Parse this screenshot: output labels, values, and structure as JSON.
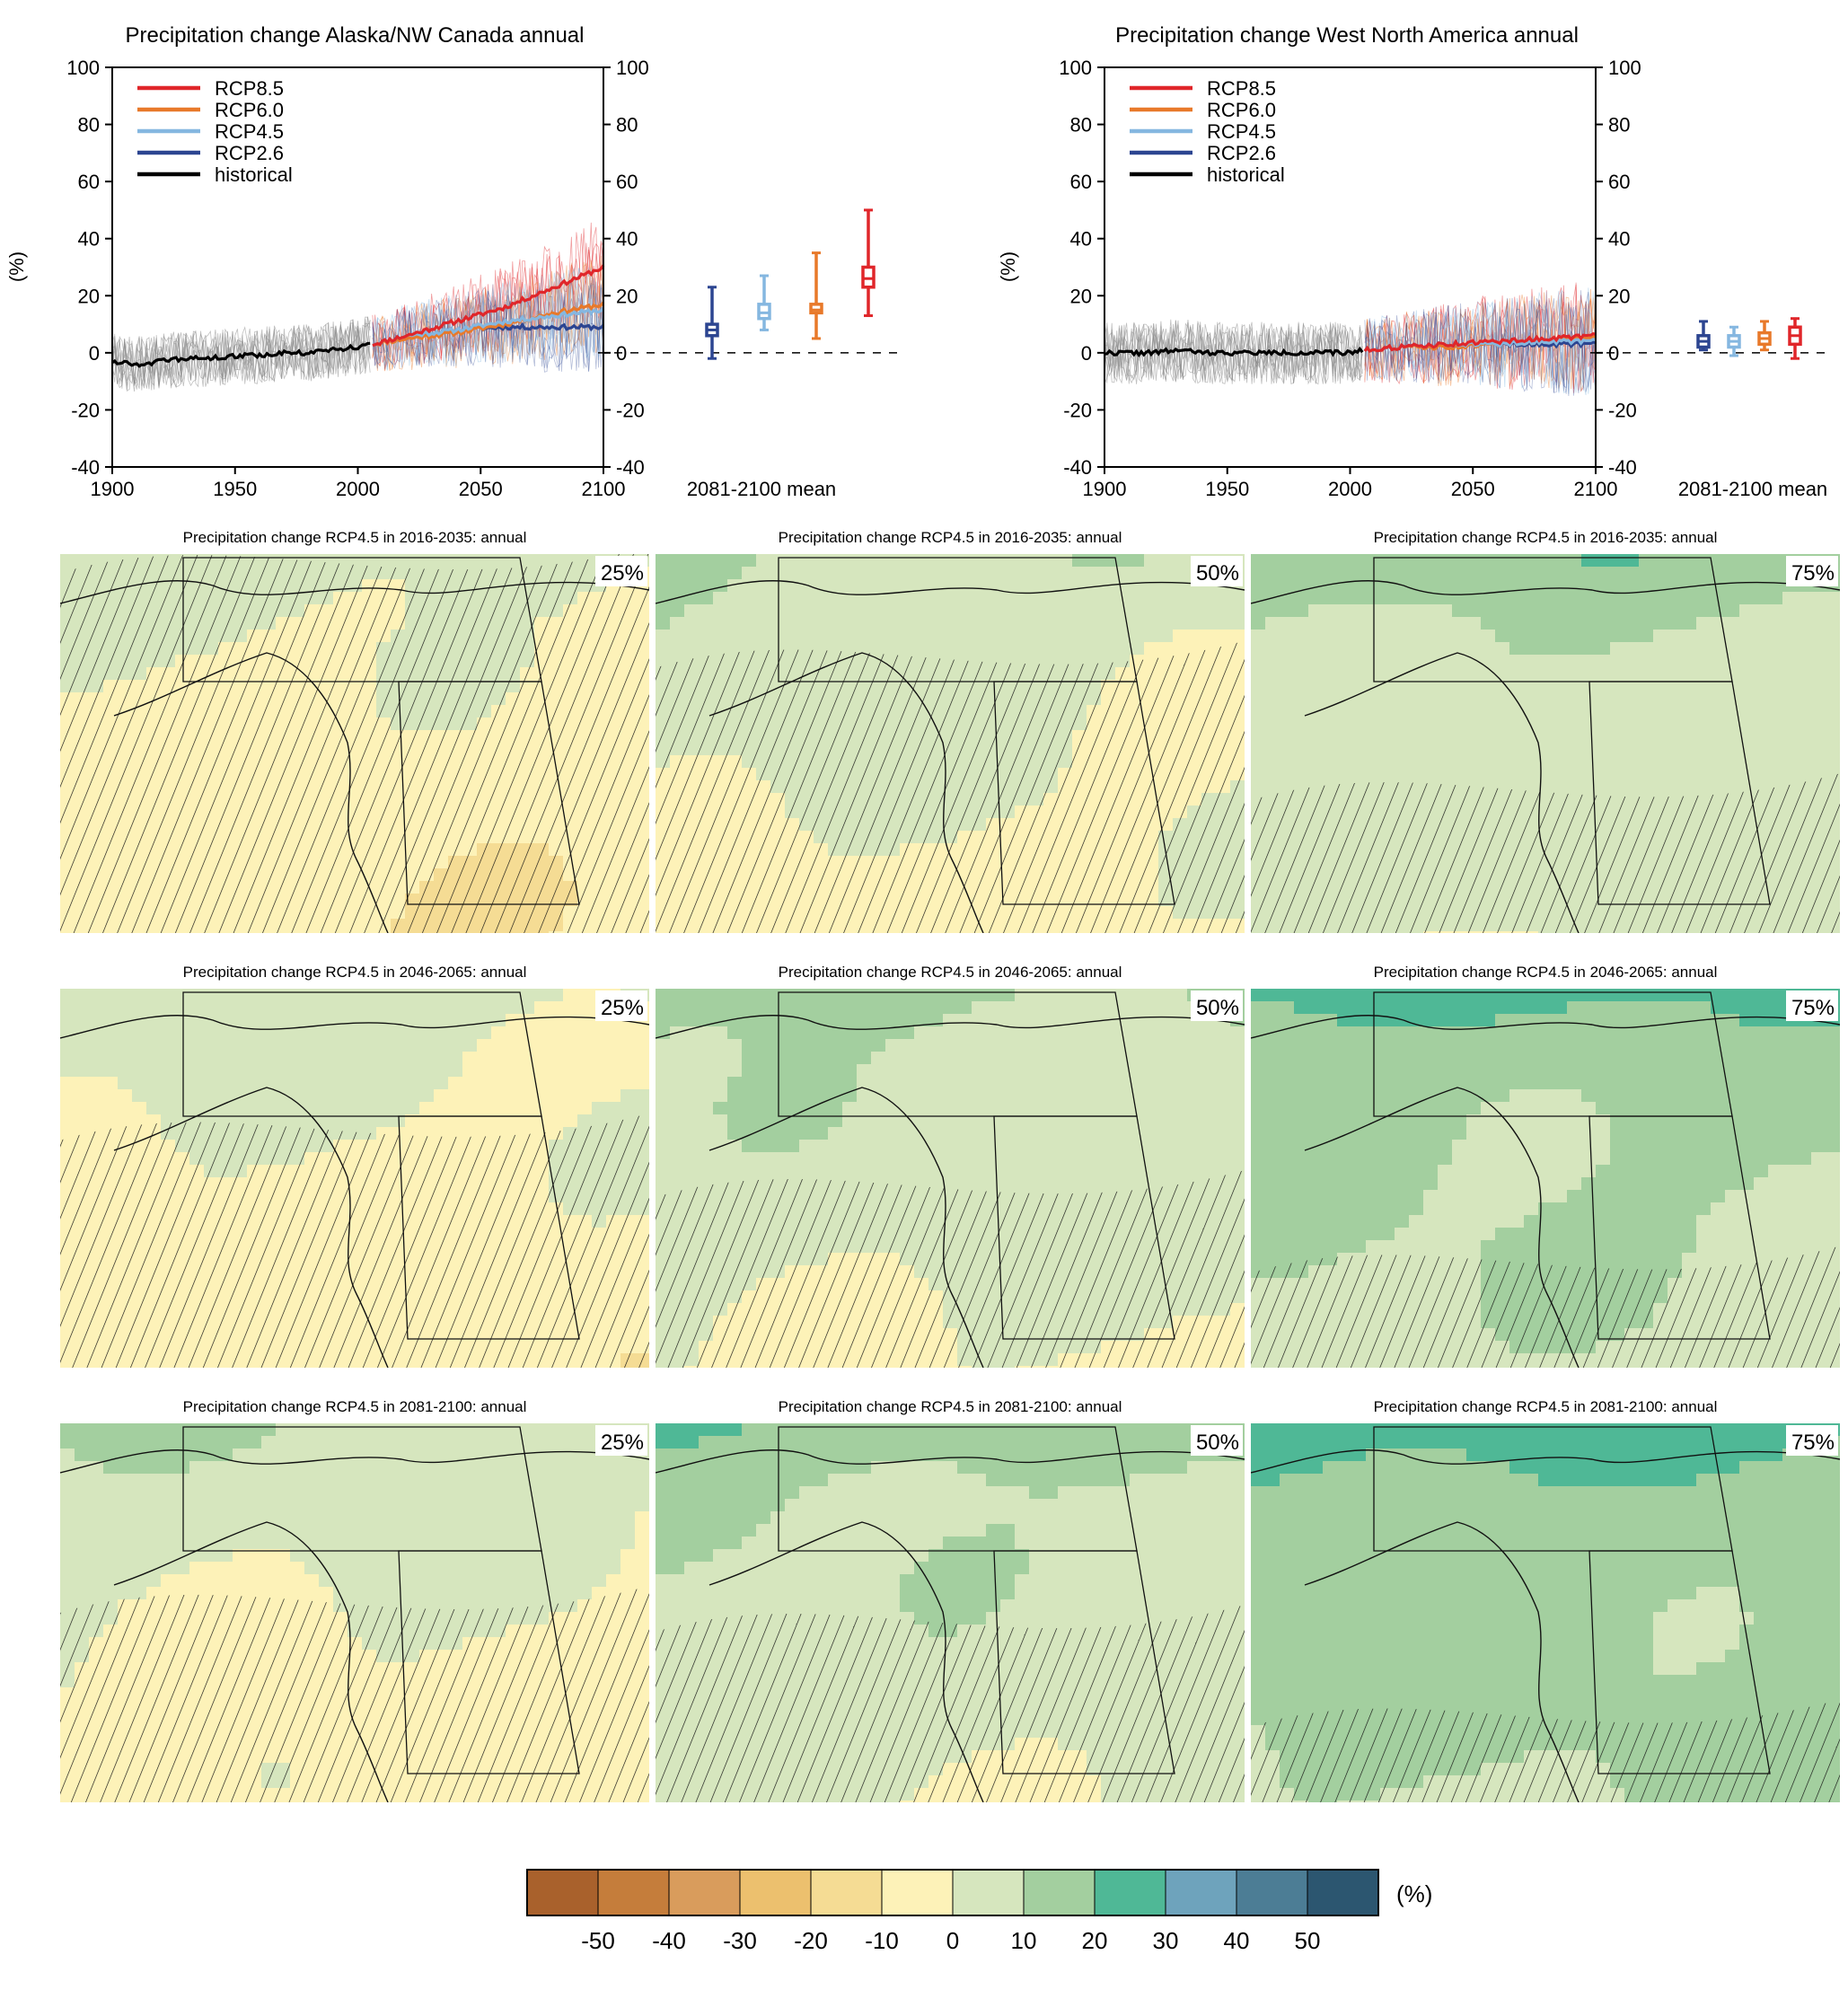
{
  "colors": {
    "rcp85": "#e0262a",
    "rcp60": "#e8792a",
    "rcp45": "#85b7e0",
    "rcp26": "#2c4591",
    "historical": "#000000",
    "spread_historical": "#8c8c8c"
  },
  "chart_data": [
    {
      "type": "line",
      "title": "Precipitation change Alaska/NW Canada annual",
      "xlabel": "",
      "ylabel": "(%)",
      "xlim": [
        1900,
        2100
      ],
      "ylim": [
        -40,
        100
      ],
      "xticks": [
        "1900",
        "1950",
        "2000",
        "2050",
        "2100"
      ],
      "yticks": [
        "-40",
        "-20",
        "0",
        "20",
        "40",
        "60",
        "80",
        "100"
      ],
      "legend": [
        "RCP8.5",
        "RCP6.0",
        "RCP4.5",
        "RCP2.6",
        "historical"
      ],
      "legend_position": "top-left",
      "series": [
        {
          "name": "historical",
          "x": [
            1900,
            1910,
            1920,
            1930,
            1940,
            1950,
            1960,
            1970,
            1980,
            1990,
            2000,
            2005
          ],
          "values": [
            -3,
            -4,
            -3,
            -2,
            -2,
            -1,
            -1,
            0,
            0,
            1,
            2,
            3
          ]
        },
        {
          "name": "RCP2.6",
          "x": [
            2006,
            2020,
            2040,
            2060,
            2080,
            2100
          ],
          "values": [
            3,
            6,
            8,
            9,
            9,
            9
          ]
        },
        {
          "name": "RCP4.5",
          "x": [
            2006,
            2020,
            2040,
            2060,
            2080,
            2100
          ],
          "values": [
            3,
            6,
            8,
            11,
            13,
            15
          ]
        },
        {
          "name": "RCP6.0",
          "x": [
            2006,
            2020,
            2040,
            2060,
            2080,
            2100
          ],
          "values": [
            3,
            5,
            7,
            10,
            14,
            17
          ]
        },
        {
          "name": "RCP8.5",
          "x": [
            2006,
            2020,
            2040,
            2060,
            2080,
            2100
          ],
          "values": [
            3,
            6,
            11,
            16,
            23,
            30
          ]
        }
      ],
      "box_label": "2081-2100 mean",
      "boxes": [
        {
          "name": "RCP2.6",
          "min": -2,
          "q1": 6,
          "median": 8,
          "q3": 10,
          "max": 23
        },
        {
          "name": "RCP4.5",
          "min": 8,
          "q1": 12,
          "median": 14,
          "q3": 17,
          "max": 27
        },
        {
          "name": "RCP6.0",
          "min": 5,
          "q1": 14,
          "median": 15,
          "q3": 17,
          "max": 35
        },
        {
          "name": "RCP8.5",
          "min": 13,
          "q1": 23,
          "median": 26,
          "q3": 30,
          "max": 50
        }
      ]
    },
    {
      "type": "line",
      "title": "Precipitation change West North America annual",
      "xlabel": "",
      "ylabel": "(%)",
      "xlim": [
        1900,
        2100
      ],
      "ylim": [
        -40,
        100
      ],
      "xticks": [
        "1900",
        "1950",
        "2000",
        "2050",
        "2100"
      ],
      "yticks": [
        "-40",
        "-20",
        "0",
        "20",
        "40",
        "60",
        "80",
        "100"
      ],
      "legend": [
        "RCP8.5",
        "RCP6.0",
        "RCP4.5",
        "RCP2.6",
        "historical"
      ],
      "legend_position": "top-left",
      "series": [
        {
          "name": "historical",
          "x": [
            1900,
            1910,
            1920,
            1930,
            1940,
            1950,
            1960,
            1970,
            1980,
            1990,
            2000,
            2005
          ],
          "values": [
            0,
            0,
            0,
            1,
            0,
            0,
            0,
            0,
            0,
            0,
            0,
            1
          ]
        },
        {
          "name": "RCP2.6",
          "x": [
            2006,
            2020,
            2040,
            2060,
            2080,
            2100
          ],
          "values": [
            1,
            2,
            3,
            3,
            3,
            3
          ]
        },
        {
          "name": "RCP4.5",
          "x": [
            2006,
            2020,
            2040,
            2060,
            2080,
            2100
          ],
          "values": [
            1,
            2,
            3,
            3,
            4,
            4
          ]
        },
        {
          "name": "RCP6.0",
          "x": [
            2006,
            2020,
            2040,
            2060,
            2080,
            2100
          ],
          "values": [
            1,
            2,
            2,
            3,
            4,
            5
          ]
        },
        {
          "name": "RCP8.5",
          "x": [
            2006,
            2020,
            2040,
            2060,
            2080,
            2100
          ],
          "values": [
            1,
            2,
            3,
            4,
            5,
            6
          ]
        }
      ],
      "box_label": "2081-2100 mean",
      "boxes": [
        {
          "name": "RCP2.6",
          "min": 1,
          "q1": 2,
          "median": 4,
          "q3": 6,
          "max": 11
        },
        {
          "name": "RCP4.5",
          "min": -1,
          "q1": 2,
          "median": 4,
          "q3": 6,
          "max": 9
        },
        {
          "name": "RCP6.0",
          "min": 1,
          "q1": 3,
          "median": 5,
          "q3": 7,
          "max": 11
        },
        {
          "name": "RCP8.5",
          "min": -2,
          "q1": 3,
          "median": 6,
          "q3": 9,
          "max": 12
        }
      ]
    },
    {
      "type": "heatmap",
      "maps": [
        {
          "title": "Precipitation change RCP4.5 in 2016-2035: annual",
          "label": "25%",
          "base": -4
        },
        {
          "title": "Precipitation change RCP4.5 in 2016-2035: annual",
          "label": "50%",
          "base": 1
        },
        {
          "title": "Precipitation change RCP4.5 in 2016-2035: annual",
          "label": "75%",
          "base": 6
        },
        {
          "title": "Precipitation change RCP4.5 in 2046-2065: annual",
          "label": "25%",
          "base": -2
        },
        {
          "title": "Precipitation change RCP4.5 in 2046-2065: annual",
          "label": "50%",
          "base": 4
        },
        {
          "title": "Precipitation change RCP4.5 in 2046-2065: annual",
          "label": "75%",
          "base": 11
        },
        {
          "title": "Precipitation change RCP4.5 in 2081-2100: annual",
          "label": "25%",
          "base": 0
        },
        {
          "title": "Precipitation change RCP4.5 in 2081-2100: annual",
          "label": "50%",
          "base": 6
        },
        {
          "title": "Precipitation change RCP4.5 in 2081-2100: annual",
          "label": "75%",
          "base": 14
        }
      ],
      "colorbar": {
        "unit": "(%)",
        "ticks": [
          "-50",
          "-40",
          "-30",
          "-20",
          "-10",
          "0",
          "10",
          "20",
          "30",
          "40",
          "50"
        ],
        "colors": [
          "#a9612c",
          "#c57d3b",
          "#d99c5c",
          "#ecc06e",
          "#f5dc94",
          "#fdf2b8",
          "#d6e6be",
          "#a3cf9f",
          "#4fb896",
          "#6ea3bc",
          "#4c7d95",
          "#2c5670"
        ]
      }
    }
  ]
}
